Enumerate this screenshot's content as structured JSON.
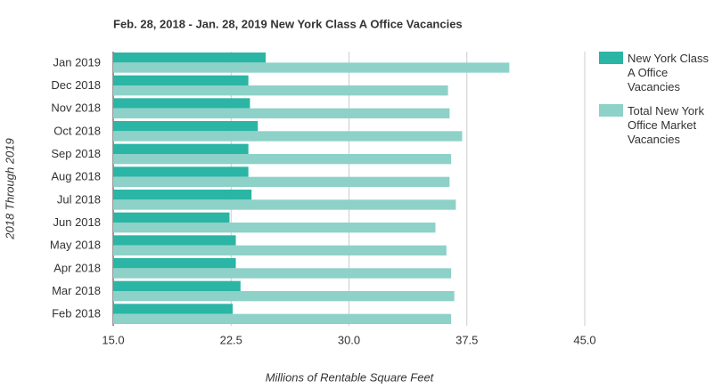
{
  "chart_data": {
    "type": "hbar",
    "title": "Feb. 28, 2018 - Jan. 28, 2019 New York Class A Office Vacancies",
    "x_label": "Millions of Rentable Square Feet",
    "y_label": "2018 Through 2019",
    "categories": [
      "Jan 2019",
      "Dec 2018",
      "Nov 2018",
      "Oct 2018",
      "Sep 2018",
      "Aug 2018",
      "Jul 2018",
      "Jun 2018",
      "May 2018",
      "Apr 2018",
      "Mar 2018",
      "Feb 2018"
    ],
    "series": [
      {
        "name": "New York Class A Office Vacancies",
        "color": "#2ab5a5",
        "values": [
          24.7,
          23.6,
          23.7,
          24.2,
          23.6,
          23.6,
          23.8,
          22.4,
          22.8,
          22.8,
          23.1,
          22.6
        ]
      },
      {
        "name": "Total New York Office Market Vacancies",
        "color": "#8ed1c8",
        "values": [
          40.2,
          36.3,
          36.4,
          37.2,
          36.5,
          36.4,
          36.8,
          35.5,
          36.2,
          36.5,
          36.7,
          36.5
        ]
      }
    ],
    "xlim": [
      15,
      45
    ],
    "xticks": [
      {
        "value": 15,
        "label": "15.0"
      },
      {
        "value": 22.5,
        "label": "22.5"
      },
      {
        "value": 30,
        "label": "30.0"
      },
      {
        "value": 37.5,
        "label": "37.5"
      },
      {
        "value": 45,
        "label": "45.0"
      }
    ],
    "grid": true
  }
}
